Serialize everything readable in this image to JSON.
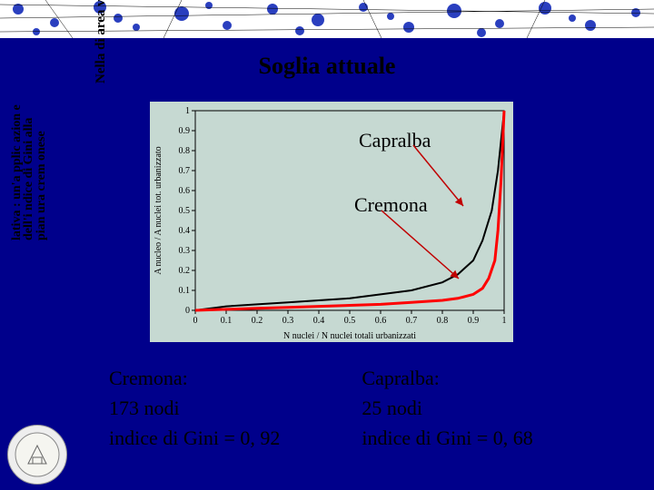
{
  "title": "Soglia attuale",
  "side_text_1": "Nella di area vasta",
  "side_text_2": "lativa : un'a pplic azion e dell'i ndice di Gini alla pian ura crem onese",
  "chart": {
    "type": "line",
    "background_color": "#c6d9d2",
    "plot_background": "#c6d9d2",
    "xlim": [
      0,
      1
    ],
    "ylim": [
      0,
      1
    ],
    "xtick_step": 0.1,
    "ytick_step": 0.1,
    "xlabel": "N nuclei / N nuclei totali urbanizzati",
    "ylabel": "A nucleo / A nuclei tot. urbanizzato",
    "axis_color": "#000000",
    "tick_fontsize": 10,
    "label_fontsize": 10,
    "series": [
      {
        "name": "Capralba",
        "color": "#000000",
        "line_width": 2,
        "x": [
          0.0,
          0.1,
          0.2,
          0.3,
          0.4,
          0.5,
          0.6,
          0.7,
          0.8,
          0.85,
          0.9,
          0.93,
          0.96,
          0.98,
          1.0
        ],
        "y": [
          0.0,
          0.02,
          0.03,
          0.04,
          0.05,
          0.06,
          0.08,
          0.1,
          0.14,
          0.18,
          0.25,
          0.35,
          0.5,
          0.7,
          1.0
        ]
      },
      {
        "name": "Cremona",
        "color": "#ff0000",
        "line_width": 3,
        "x": [
          0.0,
          0.1,
          0.2,
          0.3,
          0.4,
          0.5,
          0.6,
          0.7,
          0.8,
          0.85,
          0.9,
          0.93,
          0.95,
          0.97,
          0.98,
          0.99,
          1.0
        ],
        "y": [
          0.0,
          0.005,
          0.01,
          0.015,
          0.02,
          0.025,
          0.03,
          0.04,
          0.05,
          0.06,
          0.08,
          0.11,
          0.16,
          0.25,
          0.4,
          0.65,
          1.0
        ]
      }
    ]
  },
  "annotations": {
    "capralba": "Capralba",
    "cremona": "Cremona"
  },
  "stats": {
    "cremona": {
      "label": "Cremona:",
      "nodes": "173 nodi",
      "gini": "indice di Gini = 0, 92"
    },
    "capralba": {
      "label": "Capralba:",
      "nodes": "25 nodi",
      "gini": "indice di Gini = 0, 68"
    }
  }
}
